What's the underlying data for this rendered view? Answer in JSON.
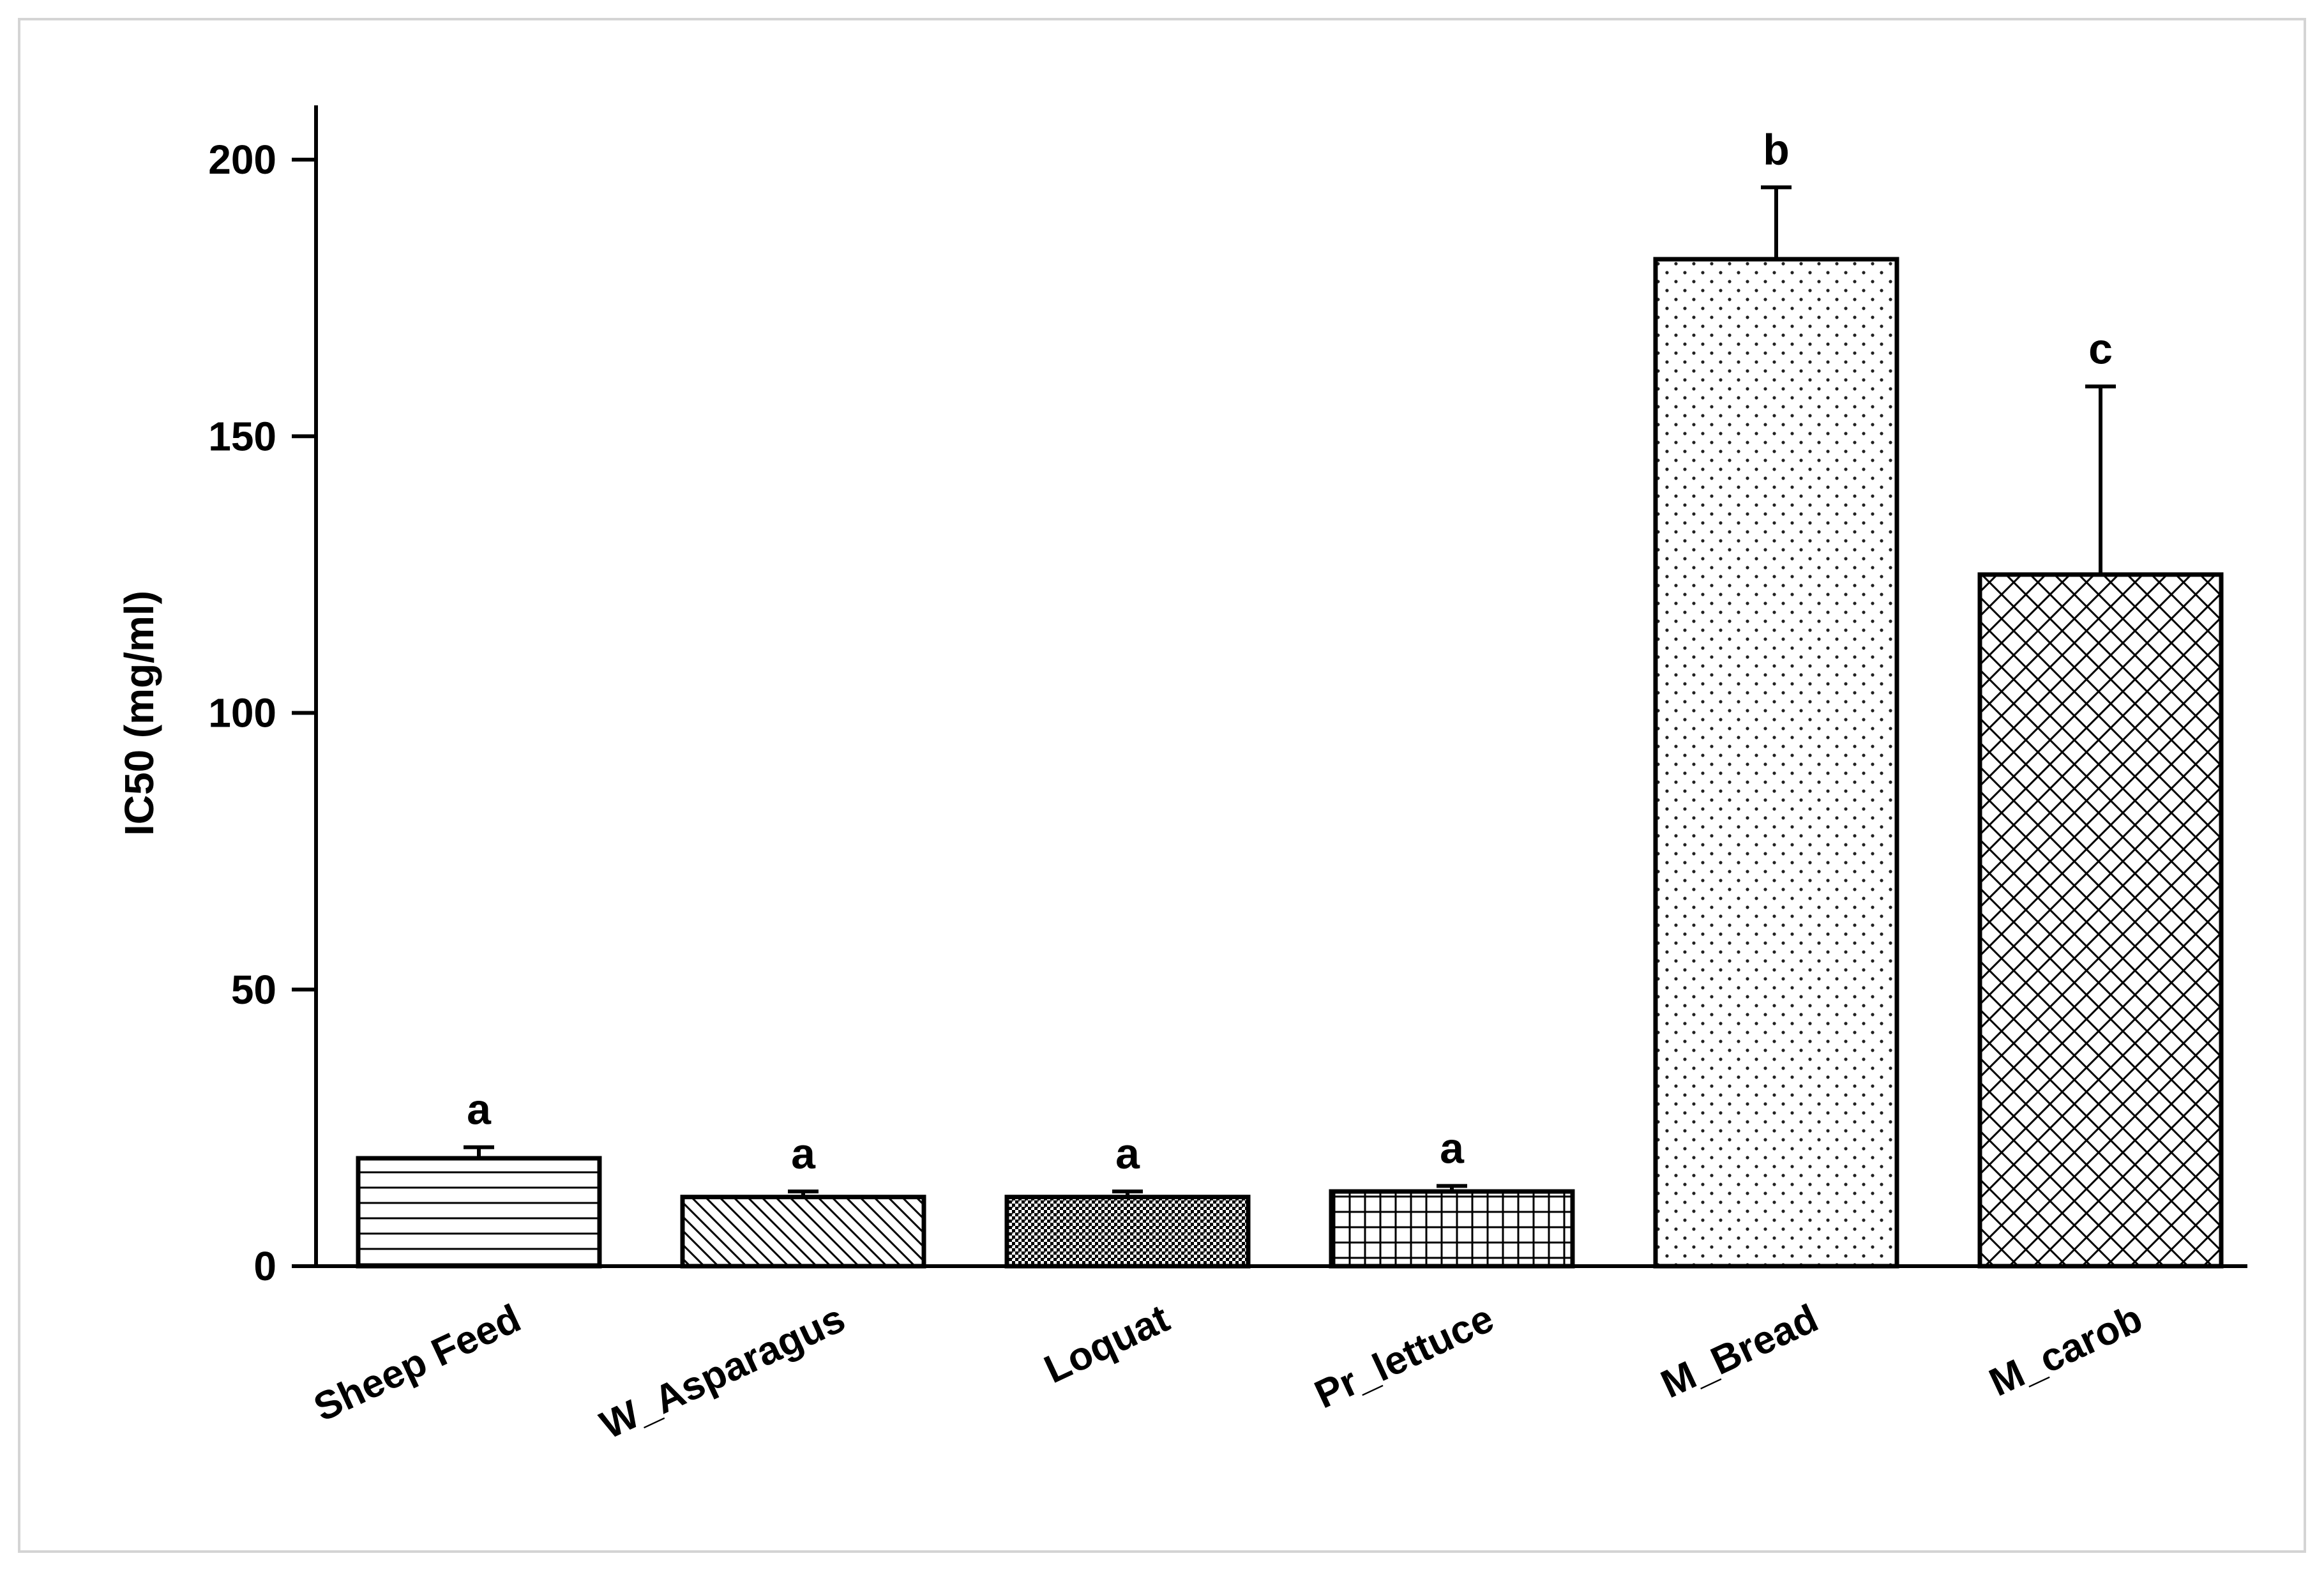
{
  "chart_data": {
    "type": "bar",
    "title": "",
    "xlabel": "",
    "ylabel": "IC50 (mg/ml)",
    "ylim": [
      0,
      210
    ],
    "yticks": [
      0,
      50,
      100,
      150,
      200
    ],
    "grid": false,
    "categories": [
      "Sheep Feed",
      "W_Asparagus",
      "Loquat",
      "Pr_lettuce",
      "M_Bread",
      "M_carob"
    ],
    "values": [
      19.5,
      12.5,
      12.5,
      13.5,
      182,
      125
    ],
    "errors": [
      2,
      1,
      1,
      1,
      13,
      34
    ],
    "significance": [
      "a",
      "a",
      "a",
      "a",
      "b",
      "c"
    ],
    "patterns": [
      "horizontal-lines",
      "diagonal-lines",
      "dense-dots",
      "grid",
      "sparse-dots",
      "crosshatch"
    ]
  }
}
